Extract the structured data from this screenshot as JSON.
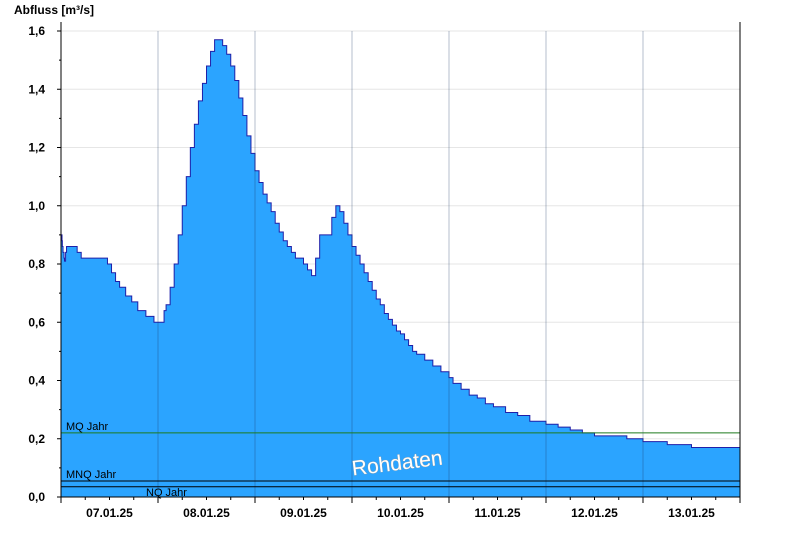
{
  "chart_data": {
    "type": "area",
    "ylabel": "Abfluss [m³/s]",
    "ylim": [
      0,
      1.6
    ],
    "xlim": [
      "07.01.25 00:00",
      "13.01.25 24:00"
    ],
    "yticks": [
      "0,0",
      "0,2",
      "0,4",
      "0,6",
      "0,8",
      "1,0",
      "1,2",
      "1,4",
      "1,6"
    ],
    "xticks": [
      "07.01.25",
      "08.01.25",
      "09.01.25",
      "10.01.25",
      "11.01.25",
      "12.01.25",
      "13.01.25"
    ],
    "grid": true,
    "fill_color": "#2ba4ff",
    "line_color": "#1f1fa8",
    "series": [
      {
        "x": [
          "07.01.25 00:00",
          "07.01.25 00:15",
          "07.01.25 00:20",
          "07.01.25 00:30",
          "07.01.25 00:45",
          "07.01.25 00:52",
          "07.01.25 01:08",
          "07.01.25 01:22",
          "07.01.25 01:36",
          "07.01.25 02:00",
          "07.01.25 04:00",
          "07.01.25 05:00",
          "07.01.25 07:00",
          "07.01.25 10:00",
          "07.01.25 11:30",
          "07.01.25 12:30",
          "07.01.25 13:30",
          "07.01.25 14:30",
          "07.01.25 16:00",
          "07.01.25 17:30",
          "07.01.25 19:00",
          "07.01.25 21:00",
          "07.01.25 23:00",
          "07.01.25 24:00",
          "08.01.25 01:00",
          "08.01.25 01:30",
          "08.01.25 02:00",
          "08.01.25 03:00",
          "08.01.25 04:00",
          "08.01.25 05:00",
          "08.01.25 06:00",
          "08.01.25 07:00",
          "08.01.25 08:00",
          "08.01.25 09:00",
          "08.01.25 10:00",
          "08.01.25 11:00",
          "08.01.25 12:00",
          "08.01.25 13:00",
          "08.01.25 14:00",
          "08.01.25 14:30",
          "08.01.25 16:00",
          "08.01.25 17:00",
          "08.01.25 18:00",
          "08.01.25 19:00",
          "08.01.25 20:00",
          "08.01.25 21:00",
          "08.01.25 22:00",
          "08.01.25 23:00",
          "08.01.25 24:00",
          "09.01.25 01:00",
          "09.01.25 02:00",
          "09.01.25 03:00",
          "09.01.25 04:00",
          "09.01.25 05:00",
          "09.01.25 06:00",
          "09.01.25 07:00",
          "09.01.25 08:00",
          "09.01.25 09:00",
          "09.01.25 10:00",
          "09.01.25 11:00",
          "09.01.25 12:00",
          "09.01.25 13:00",
          "09.01.25 14:00",
          "09.01.25 15:00",
          "09.01.25 16:00",
          "09.01.25 17:00",
          "09.01.25 18:00",
          "09.01.25 19:00",
          "09.01.25 20:00",
          "09.01.25 21:00",
          "09.01.25 22:00",
          "09.01.25 23:00",
          "09.01.25 24:00",
          "10.01.25 01:00",
          "10.01.25 02:00",
          "10.01.25 03:00",
          "10.01.25 04:00",
          "10.01.25 05:00",
          "10.01.25 06:00",
          "10.01.25 07:00",
          "10.01.25 08:00",
          "10.01.25 09:00",
          "10.01.25 10:00",
          "10.01.25 11:00",
          "10.01.25 12:00",
          "10.01.25 13:00",
          "10.01.25 14:00",
          "10.01.25 15:00",
          "10.01.25 16:00",
          "10.01.25 18:00",
          "10.01.25 20:00",
          "10.01.25 22:00",
          "11.01.25 00:00",
          "11.01.25 01:00",
          "11.01.25 03:00",
          "11.01.25 05:00",
          "11.01.25 07:00",
          "11.01.25 09:00",
          "11.01.25 11:00",
          "11.01.25 14:00",
          "11.01.25 17:00",
          "11.01.25 20:00",
          "11.01.25 24:00",
          "12.01.25 03:00",
          "12.01.25 06:00",
          "12.01.25 09:00",
          "12.01.25 12:00",
          "12.01.25 16:00",
          "12.01.25 20:00",
          "13.01.25 00:00",
          "13.01.25 06:00",
          "13.01.25 12:00",
          "13.01.25 24:00"
        ],
        "y": [
          0.9,
          0.88,
          0.86,
          0.84,
          0.82,
          0.81,
          0.84,
          0.86,
          0.86,
          0.86,
          0.84,
          0.82,
          0.82,
          0.82,
          0.8,
          0.77,
          0.74,
          0.72,
          0.69,
          0.67,
          0.64,
          0.62,
          0.6,
          0.6,
          0.6,
          0.64,
          0.66,
          0.72,
          0.8,
          0.9,
          1.0,
          1.1,
          1.2,
          1.28,
          1.36,
          1.42,
          1.48,
          1.53,
          1.57,
          1.57,
          1.55,
          1.52,
          1.48,
          1.43,
          1.37,
          1.31,
          1.24,
          1.18,
          1.12,
          1.08,
          1.04,
          1.01,
          0.98,
          0.94,
          0.91,
          0.88,
          0.86,
          0.84,
          0.82,
          0.82,
          0.8,
          0.78,
          0.76,
          0.82,
          0.9,
          0.9,
          0.9,
          0.96,
          1.0,
          0.98,
          0.94,
          0.9,
          0.86,
          0.83,
          0.8,
          0.77,
          0.74,
          0.71,
          0.68,
          0.66,
          0.63,
          0.61,
          0.59,
          0.57,
          0.56,
          0.54,
          0.52,
          0.5,
          0.49,
          0.47,
          0.45,
          0.43,
          0.41,
          0.39,
          0.37,
          0.35,
          0.34,
          0.32,
          0.31,
          0.29,
          0.28,
          0.26,
          0.25,
          0.24,
          0.23,
          0.22,
          0.21,
          0.21,
          0.2,
          0.19,
          0.18,
          0.17,
          0.17
        ]
      }
    ],
    "reference_lines": [
      {
        "label": "MQ Jahr",
        "value": 0.22,
        "color": "#1e7a1e"
      },
      {
        "label": "MNQ Jahr",
        "value": 0.055,
        "color": "#000000"
      },
      {
        "label": "NQ Jahr",
        "value": 0.035,
        "color": "#000000"
      }
    ],
    "watermark": "Rohdaten"
  }
}
